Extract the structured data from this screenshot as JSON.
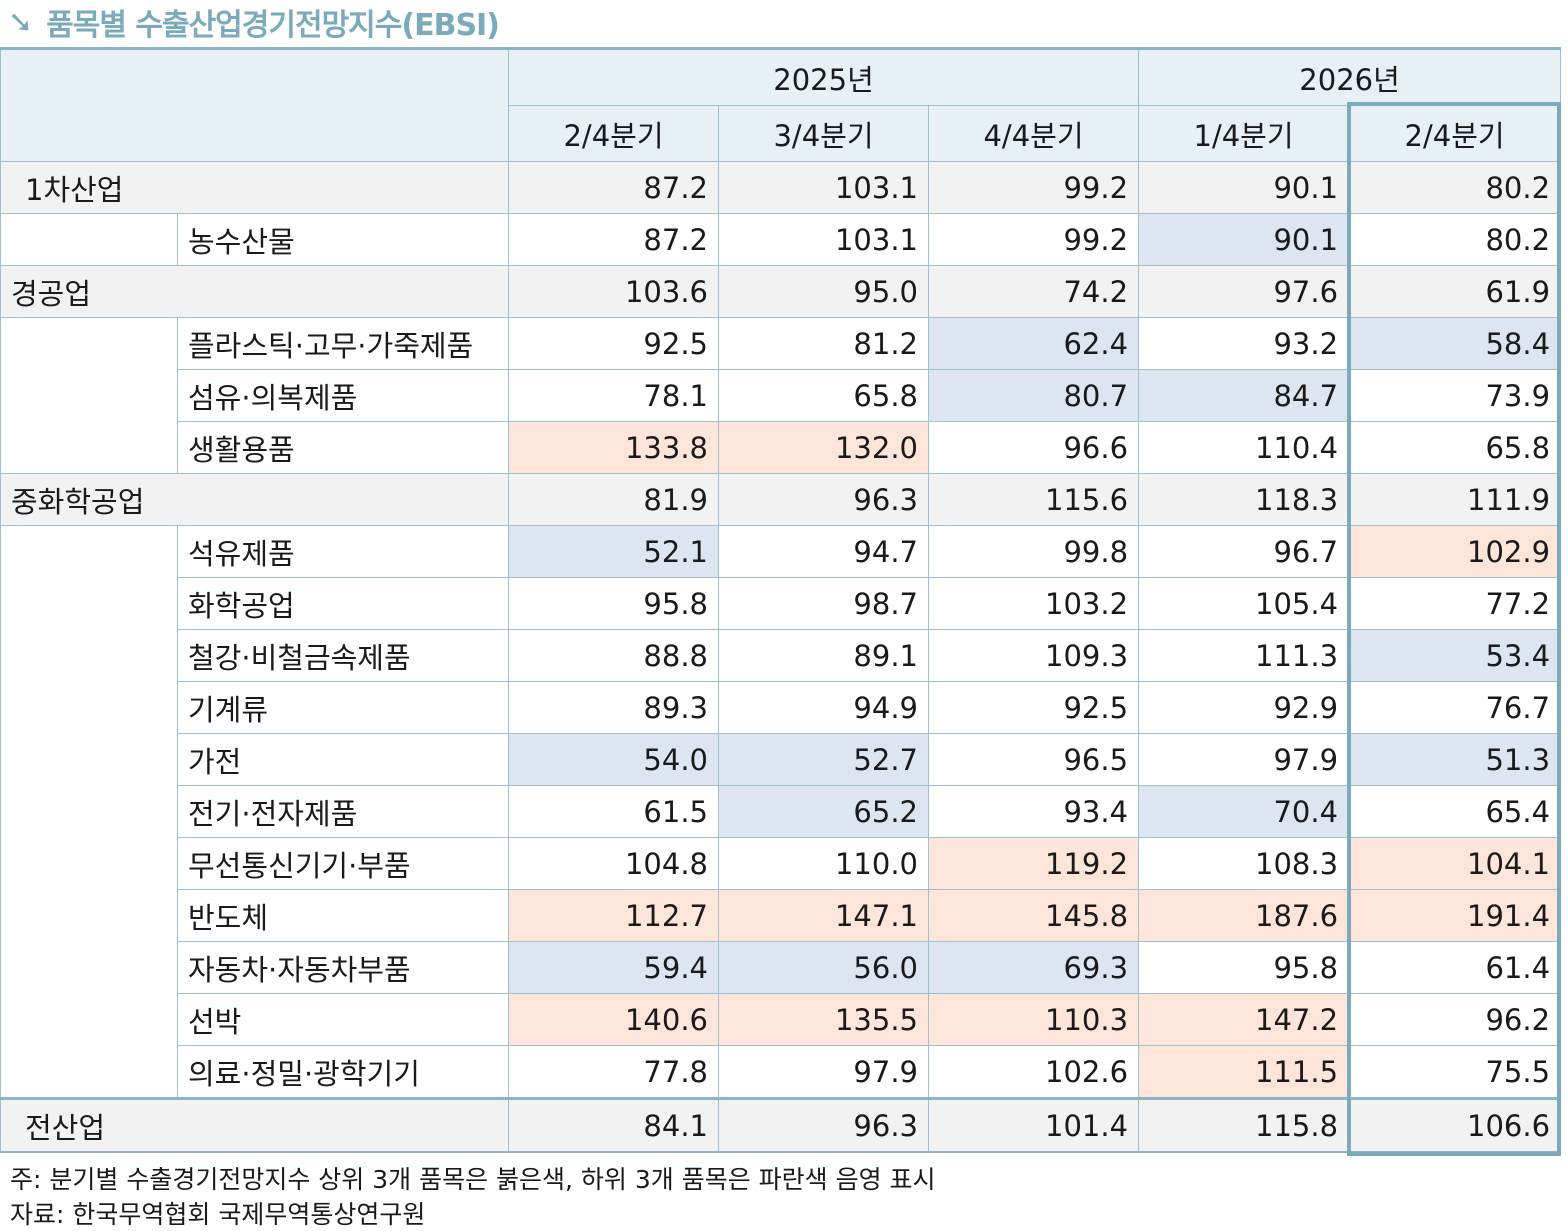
{
  "title": "품목별 수출산업경기전망지수(EBSI)",
  "colors": {
    "accent": "#7aaabb",
    "top": "#fde5da",
    "bottom": "#dde5f1"
  },
  "header": {
    "years": [
      "2025년",
      "2026년"
    ],
    "quarters": [
      "2/4분기",
      "3/4분기",
      "4/4분기",
      "1/4분기",
      "2/4분기"
    ]
  },
  "rows": [
    {
      "label": "1차산업",
      "type": "cat",
      "values": [
        "87.2",
        "103.1",
        "99.2",
        "90.1",
        "80.2"
      ],
      "marks": [
        "",
        "",
        "",
        "",
        ""
      ]
    },
    {
      "label": "농수산물",
      "type": "sub",
      "values": [
        "87.2",
        "103.1",
        "99.2",
        "90.1",
        "80.2"
      ],
      "marks": [
        "",
        "",
        "",
        "b",
        ""
      ]
    },
    {
      "label": "경공업",
      "type": "cat",
      "values": [
        "103.6",
        "95.0",
        "74.2",
        "97.6",
        "61.9"
      ],
      "marks": [
        "",
        "",
        "",
        "",
        ""
      ]
    },
    {
      "label": "플라스틱·고무·가죽제품",
      "type": "sub",
      "values": [
        "92.5",
        "81.2",
        "62.4",
        "93.2",
        "58.4"
      ],
      "marks": [
        "",
        "",
        "b",
        "",
        "b"
      ]
    },
    {
      "label": "섬유·의복제품",
      "type": "sub",
      "values": [
        "78.1",
        "65.8",
        "80.7",
        "84.7",
        "73.9"
      ],
      "marks": [
        "",
        "",
        "b",
        "b",
        ""
      ]
    },
    {
      "label": "생활용품",
      "type": "sub",
      "values": [
        "133.8",
        "132.0",
        "96.6",
        "110.4",
        "65.8"
      ],
      "marks": [
        "r",
        "r",
        "",
        "",
        ""
      ]
    },
    {
      "label": "중화학공업",
      "type": "cat",
      "values": [
        "81.9",
        "96.3",
        "115.6",
        "118.3",
        "111.9"
      ],
      "marks": [
        "",
        "",
        "",
        "",
        ""
      ]
    },
    {
      "label": "석유제품",
      "type": "sub",
      "values": [
        "52.1",
        "94.7",
        "99.8",
        "96.7",
        "102.9"
      ],
      "marks": [
        "b",
        "",
        "",
        "",
        "r"
      ]
    },
    {
      "label": "화학공업",
      "type": "sub",
      "values": [
        "95.8",
        "98.7",
        "103.2",
        "105.4",
        "77.2"
      ],
      "marks": [
        "",
        "",
        "",
        "",
        ""
      ]
    },
    {
      "label": "철강·비철금속제품",
      "type": "sub",
      "values": [
        "88.8",
        "89.1",
        "109.3",
        "111.3",
        "53.4"
      ],
      "marks": [
        "",
        "",
        "",
        "",
        "b"
      ]
    },
    {
      "label": "기계류",
      "type": "sub",
      "values": [
        "89.3",
        "94.9",
        "92.5",
        "92.9",
        "76.7"
      ],
      "marks": [
        "",
        "",
        "",
        "",
        ""
      ]
    },
    {
      "label": "가전",
      "type": "sub",
      "values": [
        "54.0",
        "52.7",
        "96.5",
        "97.9",
        "51.3"
      ],
      "marks": [
        "b",
        "b",
        "",
        "",
        "b"
      ]
    },
    {
      "label": "전기·전자제품",
      "type": "sub",
      "values": [
        "61.5",
        "65.2",
        "93.4",
        "70.4",
        "65.4"
      ],
      "marks": [
        "",
        "b",
        "",
        "b",
        ""
      ]
    },
    {
      "label": "무선통신기기·부품",
      "type": "sub",
      "values": [
        "104.8",
        "110.0",
        "119.2",
        "108.3",
        "104.1"
      ],
      "marks": [
        "",
        "",
        "r",
        "",
        "r"
      ]
    },
    {
      "label": "반도체",
      "type": "sub",
      "values": [
        "112.7",
        "147.1",
        "145.8",
        "187.6",
        "191.4"
      ],
      "marks": [
        "r",
        "r",
        "r",
        "r",
        "r"
      ]
    },
    {
      "label": "자동차·자동차부품",
      "type": "sub",
      "values": [
        "59.4",
        "56.0",
        "69.3",
        "95.8",
        "61.4"
      ],
      "marks": [
        "b",
        "b",
        "b",
        "",
        ""
      ]
    },
    {
      "label": "선박",
      "type": "sub",
      "values": [
        "140.6",
        "135.5",
        "110.3",
        "147.2",
        "96.2"
      ],
      "marks": [
        "r",
        "r",
        "r",
        "r",
        ""
      ]
    },
    {
      "label": "의료·정밀·광학기기",
      "type": "sub",
      "values": [
        "77.8",
        "97.9",
        "102.6",
        "111.5",
        "75.5"
      ],
      "marks": [
        "",
        "",
        "",
        "r",
        ""
      ]
    },
    {
      "label": "전산업",
      "type": "total",
      "values": [
        "84.1",
        "96.3",
        "101.4",
        "115.8",
        "106.6"
      ],
      "marks": [
        "",
        "",
        "",
        "",
        ""
      ]
    }
  ],
  "notes": [
    "주: 분기별 수출경기전망지수 상위 3개 품목은 붉은색, 하위 3개 품목은 파란색 음영 표시",
    "자료: 한국무역협회 국제무역통상연구원"
  ]
}
